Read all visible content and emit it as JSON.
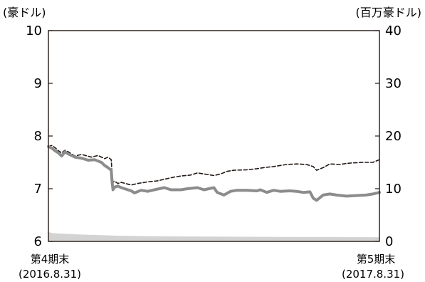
{
  "chart_data": {
    "type": "line",
    "left_axis": {
      "unit_label": "(豪ドル)",
      "ylim": [
        6,
        10
      ],
      "ticks": [
        "6",
        "7",
        "8",
        "9",
        "10"
      ]
    },
    "right_axis": {
      "unit_label": "(百万豪ドル)",
      "ylim": [
        0,
        40
      ],
      "ticks": [
        "0",
        "10",
        "20",
        "30",
        "40"
      ]
    },
    "x_labels": [
      {
        "line1": "第4期末",
        "line2": "(2016.8.31)"
      },
      {
        "line1": "第5期末",
        "line2": "(2017.8.31)"
      }
    ],
    "colors": {
      "nav_line": "#8c8c8c",
      "dashed_line": "#231815",
      "assets_area": "#d3d3d3"
    },
    "series": [
      {
        "axis": "left",
        "style": "dashed",
        "points": [
          [
            0,
            7.8
          ],
          [
            0.01,
            7.82
          ],
          [
            0.02,
            7.78
          ],
          [
            0.03,
            7.72
          ],
          [
            0.04,
            7.68
          ],
          [
            0.05,
            7.73
          ],
          [
            0.06,
            7.7
          ],
          [
            0.08,
            7.62
          ],
          [
            0.1,
            7.65
          ],
          [
            0.13,
            7.6
          ],
          [
            0.15,
            7.63
          ],
          [
            0.17,
            7.57
          ],
          [
            0.18,
            7.6
          ],
          [
            0.19,
            7.55
          ],
          [
            0.192,
            7.3
          ],
          [
            0.195,
            7.12
          ],
          [
            0.2,
            7.14
          ],
          [
            0.21,
            7.1
          ],
          [
            0.22,
            7.12
          ],
          [
            0.25,
            7.07
          ],
          [
            0.27,
            7.1
          ],
          [
            0.3,
            7.13
          ],
          [
            0.33,
            7.15
          ],
          [
            0.35,
            7.18
          ],
          [
            0.38,
            7.22
          ],
          [
            0.4,
            7.24
          ],
          [
            0.43,
            7.26
          ],
          [
            0.45,
            7.3
          ],
          [
            0.48,
            7.27
          ],
          [
            0.5,
            7.25
          ],
          [
            0.52,
            7.28
          ],
          [
            0.54,
            7.33
          ],
          [
            0.56,
            7.35
          ],
          [
            0.6,
            7.36
          ],
          [
            0.63,
            7.38
          ],
          [
            0.65,
            7.4
          ],
          [
            0.68,
            7.42
          ],
          [
            0.7,
            7.44
          ],
          [
            0.72,
            7.46
          ],
          [
            0.75,
            7.47
          ],
          [
            0.78,
            7.46
          ],
          [
            0.8,
            7.42
          ],
          [
            0.81,
            7.35
          ],
          [
            0.83,
            7.4
          ],
          [
            0.85,
            7.47
          ],
          [
            0.88,
            7.46
          ],
          [
            0.9,
            7.48
          ],
          [
            0.92,
            7.49
          ],
          [
            0.95,
            7.5
          ],
          [
            0.98,
            7.5
          ],
          [
            1,
            7.55
          ]
        ]
      },
      {
        "axis": "left",
        "style": "solid",
        "points": [
          [
            0,
            7.8
          ],
          [
            0.01,
            7.77
          ],
          [
            0.02,
            7.72
          ],
          [
            0.03,
            7.68
          ],
          [
            0.04,
            7.62
          ],
          [
            0.05,
            7.7
          ],
          [
            0.06,
            7.66
          ],
          [
            0.08,
            7.6
          ],
          [
            0.1,
            7.58
          ],
          [
            0.12,
            7.54
          ],
          [
            0.14,
            7.55
          ],
          [
            0.16,
            7.5
          ],
          [
            0.17,
            7.44
          ],
          [
            0.18,
            7.4
          ],
          [
            0.19,
            7.35
          ],
          [
            0.192,
            7.15
          ],
          [
            0.195,
            6.98
          ],
          [
            0.2,
            7.03
          ],
          [
            0.21,
            7.05
          ],
          [
            0.22,
            7.02
          ],
          [
            0.25,
            6.96
          ],
          [
            0.26,
            6.92
          ],
          [
            0.28,
            6.97
          ],
          [
            0.3,
            6.95
          ],
          [
            0.32,
            6.98
          ],
          [
            0.35,
            7.02
          ],
          [
            0.37,
            6.98
          ],
          [
            0.4,
            6.98
          ],
          [
            0.42,
            7.0
          ],
          [
            0.45,
            7.02
          ],
          [
            0.47,
            6.98
          ],
          [
            0.5,
            7.02
          ],
          [
            0.51,
            6.93
          ],
          [
            0.53,
            6.88
          ],
          [
            0.55,
            6.95
          ],
          [
            0.57,
            6.97
          ],
          [
            0.6,
            6.97
          ],
          [
            0.63,
            6.96
          ],
          [
            0.64,
            6.98
          ],
          [
            0.66,
            6.93
          ],
          [
            0.68,
            6.97
          ],
          [
            0.7,
            6.95
          ],
          [
            0.73,
            6.96
          ],
          [
            0.75,
            6.95
          ],
          [
            0.77,
            6.93
          ],
          [
            0.79,
            6.94
          ],
          [
            0.8,
            6.82
          ],
          [
            0.81,
            6.78
          ],
          [
            0.83,
            6.88
          ],
          [
            0.85,
            6.9
          ],
          [
            0.87,
            6.88
          ],
          [
            0.9,
            6.86
          ],
          [
            0.93,
            6.87
          ],
          [
            0.96,
            6.88
          ],
          [
            0.98,
            6.9
          ],
          [
            1,
            6.93
          ]
        ]
      },
      {
        "axis": "right",
        "style": "area",
        "points": [
          [
            0,
            1.8
          ],
          [
            0.01,
            1.6
          ],
          [
            0.03,
            1.5
          ],
          [
            0.1,
            1.3
          ],
          [
            0.2,
            1.1
          ],
          [
            0.3,
            1.0
          ],
          [
            0.5,
            0.9
          ],
          [
            0.7,
            0.85
          ],
          [
            0.9,
            0.82
          ],
          [
            1,
            0.8
          ]
        ]
      }
    ]
  }
}
